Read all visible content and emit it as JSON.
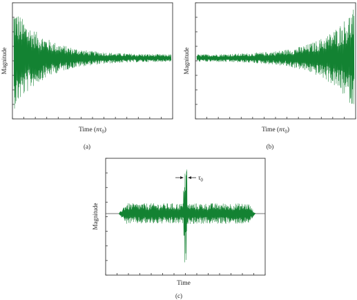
{
  "panels": [
    {
      "id": "a",
      "caption": "(a)",
      "chart_data": {
        "type": "line",
        "ylabel": "Magnitude",
        "xlabel_text": "Time (",
        "xlabel_symbol": "nτ",
        "xlabel_subscript": "0",
        "xlabel_close": ")",
        "grid": false,
        "legend": "none",
        "series": [
          {
            "color": "#138232",
            "envelope": "decaying"
          }
        ]
      }
    },
    {
      "id": "b",
      "caption": "(b)",
      "chart_data": {
        "type": "line",
        "ylabel": "Magnitude",
        "xlabel_text": "Time (",
        "xlabel_symbol": "nτ",
        "xlabel_subscript": "0",
        "xlabel_close": ")",
        "grid": false,
        "legend": "none",
        "series": [
          {
            "color": "#138232",
            "envelope": "growing"
          }
        ]
      }
    },
    {
      "id": "c",
      "caption": "(c)",
      "chart_data": {
        "type": "line",
        "ylabel": "Magnitude",
        "xlabel": "Time",
        "grid": false,
        "legend": "none",
        "annotation": {
          "symbol": "τ",
          "subscript": "0"
        },
        "series": [
          {
            "color": "#138232",
            "envelope": "burst-with-central-spike"
          }
        ]
      }
    }
  ],
  "colors": {
    "signal": "#138232",
    "axis": "#333333"
  }
}
